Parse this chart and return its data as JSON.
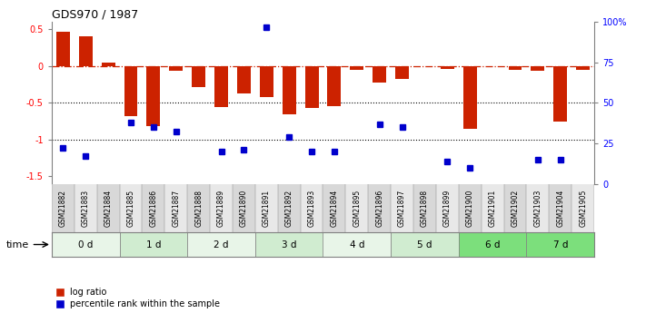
{
  "title": "GDS970 / 1987",
  "samples": [
    "GSM21882",
    "GSM21883",
    "GSM21884",
    "GSM21885",
    "GSM21886",
    "GSM21887",
    "GSM21888",
    "GSM21889",
    "GSM21890",
    "GSM21891",
    "GSM21892",
    "GSM21893",
    "GSM21894",
    "GSM21895",
    "GSM21896",
    "GSM21897",
    "GSM21898",
    "GSM21899",
    "GSM21900",
    "GSM21901",
    "GSM21902",
    "GSM21903",
    "GSM21904",
    "GSM21905"
  ],
  "log_ratio": [
    0.47,
    0.4,
    0.05,
    -0.68,
    -0.82,
    -0.07,
    -0.28,
    -0.56,
    -0.37,
    -0.42,
    -0.65,
    -0.57,
    -0.55,
    -0.05,
    -0.23,
    -0.17,
    0.0,
    -0.04,
    -0.85,
    0.0,
    -0.05,
    -0.07,
    -0.75,
    -0.05
  ],
  "percentile": [
    0.22,
    0.17,
    null,
    0.38,
    0.35,
    0.32,
    null,
    0.2,
    0.21,
    0.97,
    0.29,
    0.2,
    0.2,
    null,
    0.37,
    0.35,
    null,
    0.14,
    0.1,
    null,
    null,
    0.15,
    0.15,
    null
  ],
  "time_groups": [
    {
      "label": "0 d",
      "start": 0,
      "end": 3,
      "color": "#e8f5e8"
    },
    {
      "label": "1 d",
      "start": 3,
      "end": 6,
      "color": "#d0ecd0"
    },
    {
      "label": "2 d",
      "start": 6,
      "end": 9,
      "color": "#e8f5e8"
    },
    {
      "label": "3 d",
      "start": 9,
      "end": 12,
      "color": "#d0ecd0"
    },
    {
      "label": "4 d",
      "start": 12,
      "end": 15,
      "color": "#e8f5e8"
    },
    {
      "label": "5 d",
      "start": 15,
      "end": 18,
      "color": "#d0ecd0"
    },
    {
      "label": "6 d",
      "start": 18,
      "end": 21,
      "color": "#7cdf7c"
    },
    {
      "label": "7 d",
      "start": 21,
      "end": 24,
      "color": "#7cdf7c"
    }
  ],
  "ylim": [
    -1.6,
    0.6
  ],
  "bar_color": "#cc2200",
  "dot_color": "#0000cc",
  "hline_color": "#cc2200",
  "dotted_color": "#000000",
  "right_yticks": [
    0,
    25,
    50,
    75,
    100
  ],
  "right_ylabels": [
    "0",
    "25",
    "50",
    "75",
    "100%"
  ],
  "left_yticks": [
    -1.5,
    -1.0,
    -0.5,
    0.0,
    0.5
  ],
  "left_ylabels": [
    "-1.5",
    "-1",
    "-0.5",
    "0",
    "0.5"
  ],
  "legend_items": [
    "log ratio",
    "percentile rank within the sample"
  ]
}
